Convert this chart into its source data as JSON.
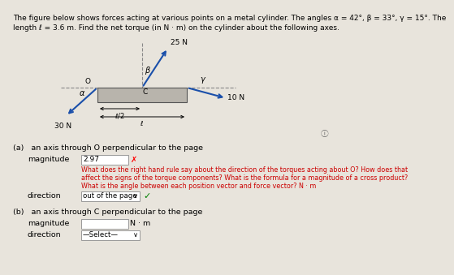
{
  "title_line1": "The figure below shows forces acting at various points on a metal cylinder. The angles α = 42°, β = 33°, γ = 15°. The",
  "title_line2": "length ℓ = 3.6 m. Find the net torque (in N · m) on the cylinder about the following axes.",
  "bg_color": "#e8e4dc",
  "box_fill": "#b8b4ac",
  "arrow_color": "#1a4faa",
  "dash_color": "#888888",
  "section_a": "(a)   an axis through O perpendicular to the page",
  "mag_label": "magnitude",
  "mag_value": "2.97",
  "err1": "What does the right hand rule say about the direction of the torques acting about O? How does that",
  "err2": "affect the signs of the torque components? What is the formula for a magnitude of a cross product?",
  "err3": "What is the angle between each position vector and force vector? N · m",
  "dir_label": "direction",
  "dir_value": "out of the page",
  "section_b": "(b)   an axis through C perpendicular to the page",
  "mag_b_label": "magnitude",
  "dir_b_label": "direction",
  "dir_b_value": "—Select—",
  "nm_label": "N · m"
}
